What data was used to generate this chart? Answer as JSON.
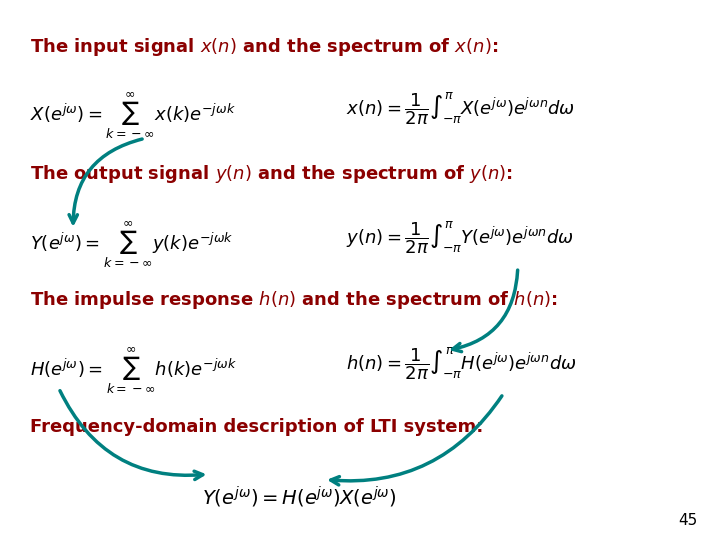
{
  "bg_color": "#ffffff",
  "title_color": "#8B0000",
  "eq_color": "#000000",
  "arrow_color": "#008080",
  "page_num": "45",
  "line1_text": "The input signal $x(n)$ and the spectrum of $x(n)$:",
  "line2_text": "The output signal $y(n)$ and the spectrum of $y(n)$:",
  "line3_text": "The impulse response $h(n)$ and the spectrum of $h(n)$:",
  "line4_text": "Frequency-domain description of LTI system:",
  "eq1a": "$X(e^{j\\omega}) = \\sum_{k=-\\infty}^{\\infty} x(k)e^{-j\\omega k}$",
  "eq1b": "$x(n) = \\dfrac{1}{2\\pi}\\int_{-\\pi}^{\\pi} X(e^{j\\omega})e^{j\\omega n}d\\omega$",
  "eq2a": "$Y(e^{j\\omega}) = \\sum_{k=-\\infty}^{\\infty} y(k)e^{-j\\omega k}$",
  "eq2b": "$y(n) = \\dfrac{1}{2\\pi}\\int_{-\\pi}^{\\pi} Y(e^{j\\omega})e^{j\\omega n}d\\omega$",
  "eq3a": "$H(e^{j\\omega}) = \\sum_{k=-\\infty}^{\\infty} h(k)e^{-j\\omega k}$",
  "eq3b": "$h(n) = \\dfrac{1}{2\\pi}\\int_{-\\pi}^{\\pi} H(e^{j\\omega})e^{j\\omega n}d\\omega$",
  "eq4": "$Y(e^{j\\omega}) = H(e^{j\\omega})X(e^{j\\omega})$",
  "title_fontsize": 13,
  "eq_fontsize": 13,
  "label_fontsize": 11
}
